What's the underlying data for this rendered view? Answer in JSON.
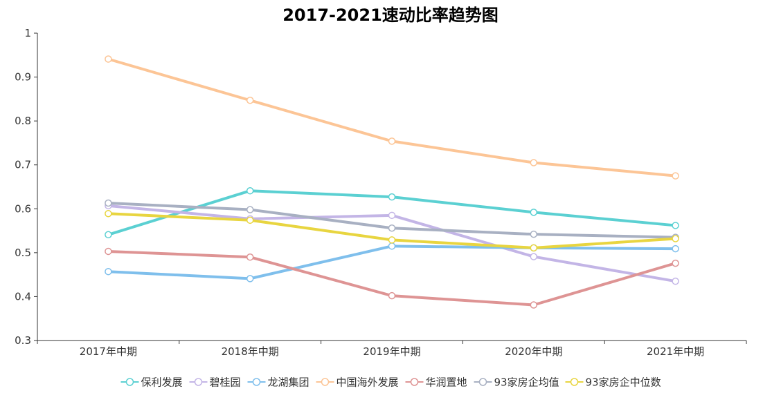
{
  "chart_data": {
    "type": "line",
    "title": "2017-2021速动比率趋势图",
    "xlabel": "",
    "ylabel": "",
    "categories": [
      "2017年中期",
      "2018年中期",
      "2019年中期",
      "2020年中期",
      "2021年中期"
    ],
    "ylim": [
      0.3,
      1
    ],
    "yticks": [
      "0.3",
      "0.4",
      "0.5",
      "0.6",
      "0.7",
      "0.8",
      "0.9",
      "1"
    ],
    "grid": false,
    "legend_position": "bottom",
    "series": [
      {
        "name": "保利发展",
        "color": "#5bd0d2",
        "values": [
          0.541,
          0.641,
          0.627,
          0.592,
          0.562
        ]
      },
      {
        "name": "碧桂园",
        "color": "#c3b5e6",
        "values": [
          0.607,
          0.577,
          0.585,
          0.491,
          0.435
        ]
      },
      {
        "name": "龙湖集团",
        "color": "#7fbfec",
        "values": [
          0.457,
          0.441,
          0.515,
          0.511,
          0.509
        ]
      },
      {
        "name": "中国海外发展",
        "color": "#fcc596",
        "values": [
          0.941,
          0.847,
          0.754,
          0.705,
          0.675
        ]
      },
      {
        "name": "华润置地",
        "color": "#de9494",
        "values": [
          0.503,
          0.49,
          0.402,
          0.381,
          0.476
        ]
      },
      {
        "name": "93家房企均值",
        "color": "#a8b0c2",
        "values": [
          0.613,
          0.598,
          0.556,
          0.542,
          0.535
        ]
      },
      {
        "name": "93家房企中位数",
        "color": "#e8d540",
        "values": [
          0.589,
          0.574,
          0.529,
          0.511,
          0.532
        ]
      }
    ]
  }
}
